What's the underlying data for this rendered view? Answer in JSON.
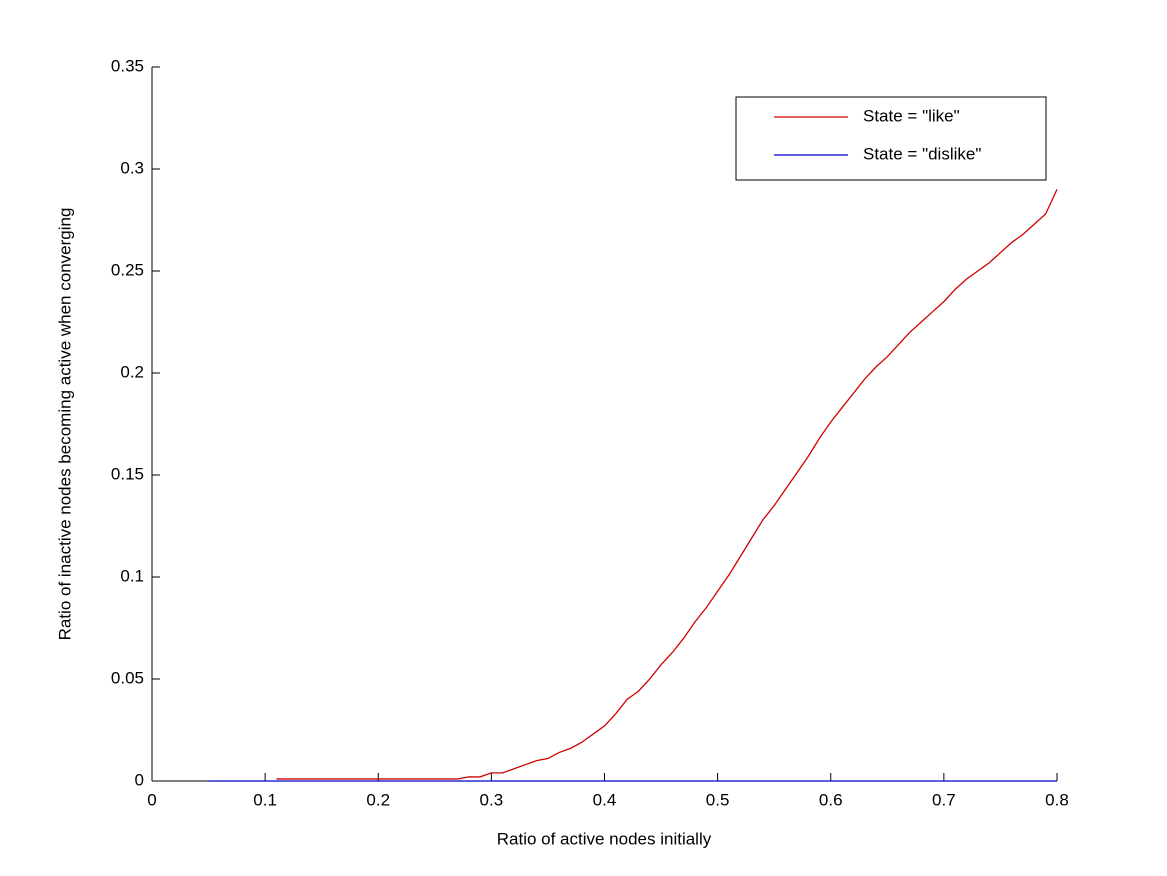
{
  "chart_data": {
    "type": "line",
    "xlabel": "Ratio of active nodes initially",
    "ylabel": "Ratio of inactive nodes becoming active when converging",
    "xlim": [
      0,
      0.8
    ],
    "xticks": [
      0,
      0.1,
      0.2,
      0.3,
      0.4,
      0.5,
      0.6,
      0.7,
      0.8
    ],
    "ylim": [
      0,
      0.35
    ],
    "yticks": [
      0,
      0.05,
      0.1,
      0.15,
      0.2,
      0.25,
      0.3,
      0.35
    ],
    "legend_position": "northeast",
    "series": [
      {
        "name": "State = \"like\"",
        "color": "#d00000",
        "x": [
          0.11,
          0.12,
          0.13,
          0.14,
          0.15,
          0.16,
          0.17,
          0.18,
          0.19,
          0.2,
          0.21,
          0.22,
          0.23,
          0.24,
          0.25,
          0.26,
          0.27,
          0.28,
          0.29,
          0.3,
          0.31,
          0.32,
          0.33,
          0.34,
          0.35,
          0.36,
          0.37,
          0.38,
          0.39,
          0.4,
          0.41,
          0.42,
          0.43,
          0.44,
          0.45,
          0.46,
          0.47,
          0.48,
          0.49,
          0.5,
          0.51,
          0.52,
          0.53,
          0.54,
          0.55,
          0.56,
          0.57,
          0.58,
          0.59,
          0.6,
          0.61,
          0.62,
          0.63,
          0.64,
          0.65,
          0.66,
          0.67,
          0.68,
          0.69,
          0.7,
          0.71,
          0.72,
          0.73,
          0.74,
          0.75,
          0.76,
          0.77,
          0.78,
          0.79,
          0.8
        ],
        "values": [
          0.001,
          0.001,
          0.001,
          0.001,
          0.001,
          0.001,
          0.001,
          0.001,
          0.001,
          0.001,
          0.001,
          0.001,
          0.001,
          0.001,
          0.001,
          0.001,
          0.001,
          0.002,
          0.002,
          0.004,
          0.004,
          0.006,
          0.008,
          0.01,
          0.011,
          0.014,
          0.016,
          0.019,
          0.023,
          0.027,
          0.033,
          0.04,
          0.044,
          0.05,
          0.057,
          0.063,
          0.07,
          0.078,
          0.085,
          0.093,
          0.101,
          0.11,
          0.119,
          0.128,
          0.135,
          0.143,
          0.151,
          0.159,
          0.168,
          0.176,
          0.183,
          0.19,
          0.197,
          0.203,
          0.208,
          0.214,
          0.22,
          0.225,
          0.23,
          0.235,
          0.241,
          0.246,
          0.25,
          0.254,
          0.259,
          0.264,
          0.268,
          0.273,
          0.278,
          0.29
        ]
      },
      {
        "name": "State = \"dislike\"",
        "color": "#0000c8",
        "x": [
          0.05,
          0.8
        ],
        "values": [
          0,
          0
        ]
      }
    ]
  }
}
